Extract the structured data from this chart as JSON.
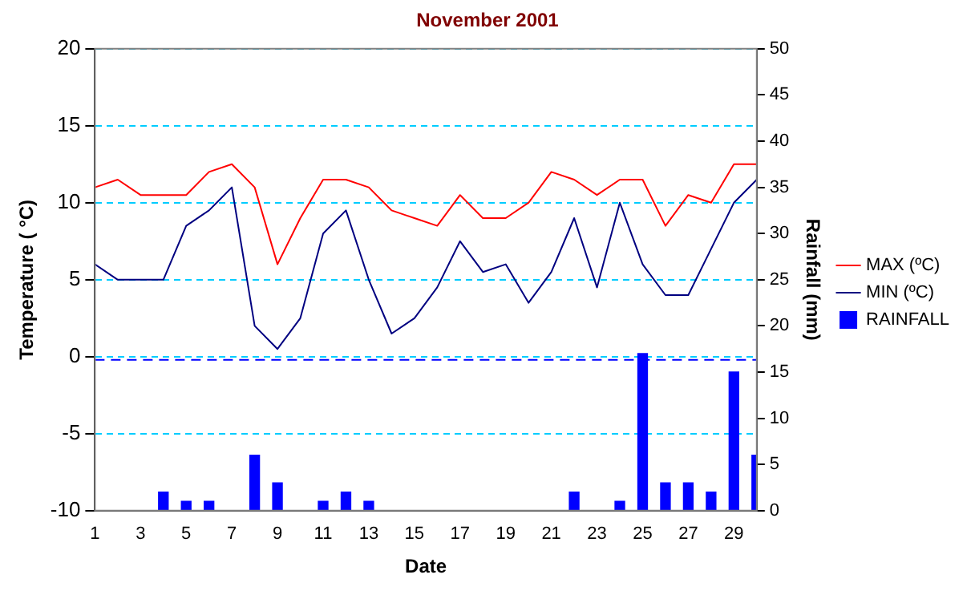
{
  "chart_data": {
    "type": "line",
    "title": "November 2001",
    "xlabel": "Date",
    "ylabel": "Temperature ( °C)",
    "y2label": "Rainfall (mm)",
    "x": [
      1,
      2,
      3,
      4,
      5,
      6,
      7,
      8,
      9,
      10,
      11,
      12,
      13,
      14,
      15,
      16,
      17,
      18,
      19,
      20,
      21,
      22,
      23,
      24,
      25,
      26,
      27,
      28,
      29,
      30
    ],
    "series": [
      {
        "name": "MAX (ºC)",
        "color": "#ff0000",
        "values": [
          11,
          11.5,
          10.5,
          10.5,
          10.5,
          12,
          12.5,
          11,
          6,
          9,
          11.5,
          11.5,
          11,
          9.5,
          9,
          8.5,
          10.5,
          9,
          9,
          10,
          12,
          11.5,
          10.5,
          11.5,
          11.5,
          8.5,
          10.5,
          10,
          12.5,
          12.5
        ]
      },
      {
        "name": "MIN (ºC)",
        "color": "#000080",
        "values": [
          6,
          5,
          5,
          5,
          8.5,
          9.5,
          11,
          2,
          0.5,
          2.5,
          8,
          9.5,
          5,
          1.5,
          2.5,
          4.5,
          7.5,
          5.5,
          6,
          3.5,
          5.5,
          9,
          4.5,
          10,
          6,
          4,
          4,
          7,
          10,
          11.5
        ]
      },
      {
        "name": "RAINFALL",
        "type": "bar",
        "axis": "y2",
        "color": "#0000ff",
        "values": [
          0,
          0,
          0,
          2,
          1,
          1,
          0,
          6,
          3,
          0,
          1,
          2,
          1,
          0,
          0,
          0,
          0,
          0,
          0,
          0,
          0,
          2,
          0,
          1,
          17,
          3,
          3,
          2,
          15,
          6
        ]
      }
    ],
    "xlim": [
      1,
      30
    ],
    "xticks": [
      1,
      3,
      5,
      7,
      9,
      11,
      13,
      15,
      17,
      19,
      21,
      23,
      25,
      27,
      29
    ],
    "ylim": [
      -10,
      20
    ],
    "yticks": [
      -10,
      -5,
      0,
      5,
      10,
      15,
      20
    ],
    "y2lim": [
      0,
      50
    ],
    "y2ticks": [
      0,
      5,
      10,
      15,
      20,
      25,
      30,
      35,
      40,
      45,
      50
    ],
    "ref_lines": [
      {
        "axis": "y",
        "value": -0.2,
        "color": "#0000ff",
        "line_style": "dashed"
      }
    ],
    "grid": "y",
    "legend": "right",
    "marker": "none",
    "line_style": "solid"
  }
}
